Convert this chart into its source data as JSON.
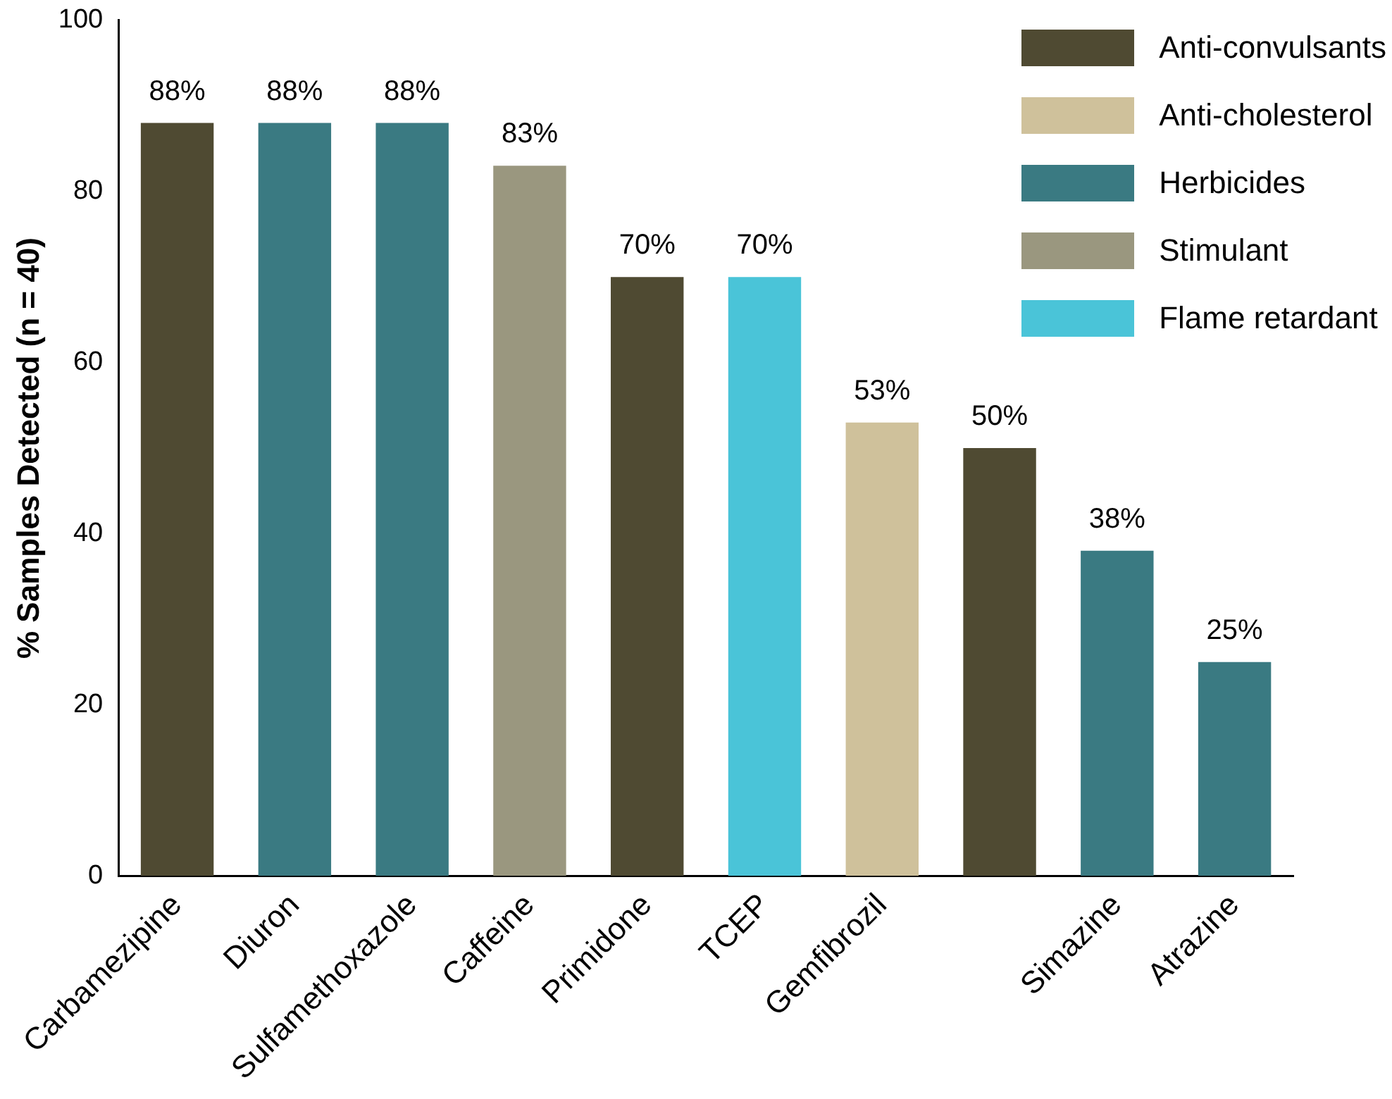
{
  "chart_data": {
    "type": "bar",
    "ylabel": "% Samples Detected (n = 40)",
    "categories": [
      "Carbamezipine",
      "Diuron",
      "Sulfamethoxazole",
      "Caffeine",
      "Primidone",
      "TCEP",
      "Gemfibrozil",
      null,
      "Simazine",
      "Atrazine"
    ],
    "stacked": true,
    "series": [
      {
        "name": "Anti-convulsants",
        "color": "#4f4a32",
        "values": [
          88,
          null,
          null,
          null,
          70,
          null,
          null,
          50,
          null,
          null
        ],
        "value_labels": [
          "88%",
          null,
          null,
          null,
          "70%",
          null,
          null,
          "50%",
          null,
          null
        ]
      },
      {
        "name": "Anti-cholesterol",
        "color": "#cfc19b",
        "values": [
          null,
          null,
          null,
          null,
          null,
          null,
          53,
          null,
          null,
          null
        ],
        "value_labels": [
          null,
          null,
          null,
          null,
          null,
          null,
          "53%",
          null,
          null,
          null
        ]
      },
      {
        "name": "Herbicides",
        "color": "#3a7a82",
        "values": [
          null,
          88,
          88,
          null,
          null,
          null,
          null,
          null,
          38,
          25
        ],
        "value_labels": [
          null,
          "88%",
          "88%",
          null,
          null,
          null,
          null,
          null,
          "38%",
          "25%"
        ]
      },
      {
        "name": "Stimulant",
        "color": "#9a977f",
        "values": [
          null,
          null,
          null,
          83,
          null,
          null,
          null,
          null,
          null,
          null
        ],
        "value_labels": [
          null,
          null,
          null,
          "83%",
          null,
          null,
          null,
          null,
          null,
          null
        ]
      },
      {
        "name": "Flame retardant",
        "color": "#4ac4d8",
        "values": [
          null,
          null,
          null,
          null,
          null,
          70,
          null,
          null,
          null,
          null
        ],
        "value_labels": [
          null,
          null,
          null,
          null,
          null,
          "70%",
          null,
          null,
          null,
          null
        ]
      }
    ],
    "ylim": [
      0,
      100
    ],
    "yticks": [
      0,
      20,
      40,
      60,
      80,
      100
    ],
    "grid": false,
    "legend": "top right"
  }
}
